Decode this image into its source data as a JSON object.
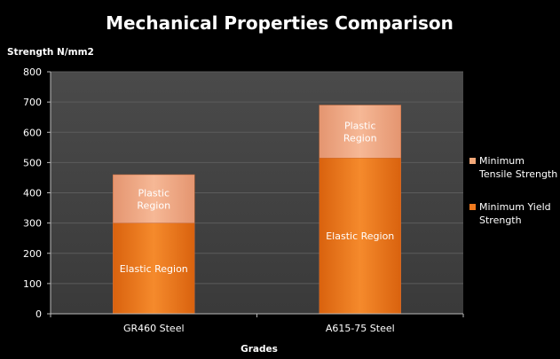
{
  "chart_data": {
    "type": "bar",
    "stacked": true,
    "title": "Mechanical Properties Comparison",
    "xlabel": "Grades",
    "ylabel": "Strength N/mm2",
    "ylim": [
      0,
      800
    ],
    "yticks": [
      0,
      100,
      200,
      300,
      400,
      500,
      600,
      700,
      800
    ],
    "grid": true,
    "legend_position": "right",
    "categories": [
      "GR460 Steel",
      "A615-75 Steel"
    ],
    "series": [
      {
        "name": "Minimum Yield Strength",
        "values": [
          300,
          515
        ],
        "color": "#f07a1e",
        "segment_label": "Elastic Region"
      },
      {
        "name": "Minimum Tensile Strength",
        "values": [
          160,
          175
        ],
        "color": "#f3a878",
        "segment_label": "Plastic Region"
      }
    ],
    "legend": [
      {
        "lines": [
          "Minimum",
          "Tensile Strength"
        ],
        "color": "#f3a878"
      },
      {
        "lines": [
          "Minimum Yield",
          "Strength"
        ],
        "color": "#f07a1e"
      }
    ],
    "segment_label_lines": {
      "Elastic Region": [
        "Elastic Region"
      ],
      "Plastic Region": [
        "Plastic",
        "Region"
      ]
    }
  }
}
